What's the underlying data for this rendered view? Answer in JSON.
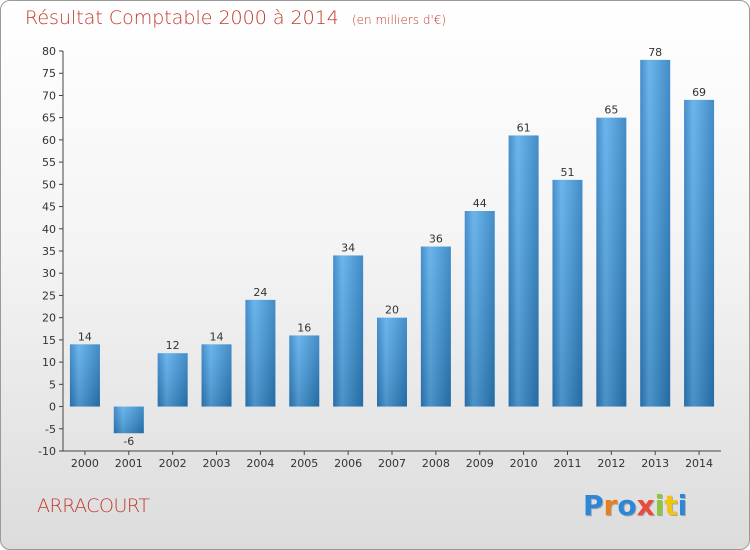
{
  "chart_data": {
    "type": "bar",
    "title": "Résultat Comptable 2000 à 2014",
    "unit_label": "(en milliers d'€)",
    "categories": [
      "2000",
      "2001",
      "2002",
      "2003",
      "2004",
      "2005",
      "2006",
      "2007",
      "2008",
      "2009",
      "2010",
      "2011",
      "2012",
      "2013",
      "2014"
    ],
    "values": [
      14,
      -6,
      12,
      14,
      24,
      16,
      34,
      20,
      36,
      44,
      61,
      51,
      65,
      78,
      69
    ],
    "ylim": [
      -10,
      80
    ],
    "yticks": [
      -10,
      -5,
      0,
      5,
      10,
      15,
      20,
      25,
      30,
      35,
      40,
      45,
      50,
      55,
      60,
      65,
      70,
      75,
      80
    ],
    "grid": false,
    "bar_color": "#3d93d6",
    "bar_color_light": "#5aaee8",
    "bar_color_dark": "#2878b8"
  },
  "commune": "ARRACOURT",
  "logo": {
    "letters": [
      "P",
      "r",
      "o",
      "x",
      "i",
      "t",
      "i"
    ]
  }
}
